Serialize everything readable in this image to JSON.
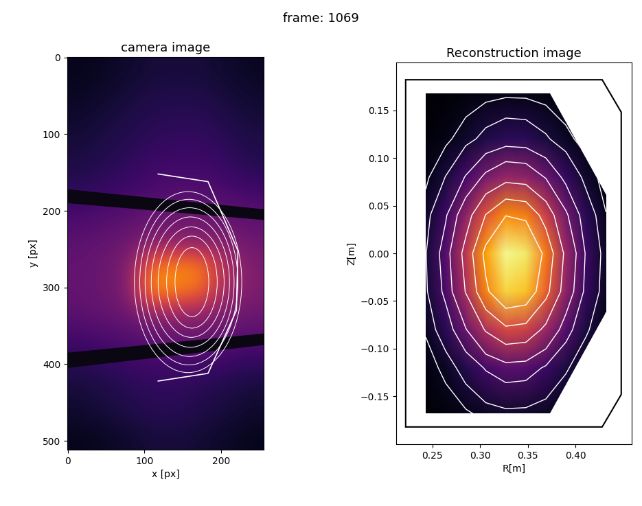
{
  "title": "frame: 1069",
  "chart_data": [
    {
      "type": "image",
      "title": "camera image",
      "xlabel": "x [px]",
      "ylabel": "y [px]",
      "xlim": [
        -0.5,
        255.5
      ],
      "ylim": [
        511.5,
        -0.5
      ],
      "xticks": [
        0,
        100,
        200
      ],
      "yticks": [
        0,
        100,
        200,
        300,
        400,
        500
      ],
      "color": "inferno",
      "color_range": [
        0,
        1
      ],
      "cells": [
        [
          0.05,
          0.06,
          0.08,
          0.1,
          0.1,
          0.1,
          0.08,
          0.06
        ],
        [
          0.06,
          0.08,
          0.1,
          0.12,
          0.12,
          0.12,
          0.1,
          0.08
        ],
        [
          0.08,
          0.1,
          0.12,
          0.14,
          0.15,
          0.15,
          0.12,
          0.1
        ],
        [
          0.1,
          0.12,
          0.14,
          0.16,
          0.17,
          0.17,
          0.15,
          0.12
        ],
        [
          0.12,
          0.14,
          0.16,
          0.2,
          0.2,
          0.2,
          0.18,
          0.14
        ],
        [
          0.16,
          0.18,
          0.2,
          0.22,
          0.24,
          0.24,
          0.22,
          0.2
        ],
        [
          0.22,
          0.24,
          0.26,
          0.3,
          0.3,
          0.3,
          0.28,
          0.26
        ],
        [
          0.26,
          0.28,
          0.3,
          0.34,
          0.36,
          0.36,
          0.34,
          0.3
        ],
        [
          0.28,
          0.3,
          0.34,
          0.7,
          0.75,
          0.72,
          0.45,
          0.34
        ],
        [
          0.28,
          0.3,
          0.34,
          0.8,
          0.72,
          0.68,
          0.42,
          0.34
        ],
        [
          0.26,
          0.28,
          0.3,
          0.36,
          0.4,
          0.38,
          0.32,
          0.3
        ],
        [
          0.2,
          0.22,
          0.24,
          0.26,
          0.28,
          0.28,
          0.26,
          0.24
        ],
        [
          0.14,
          0.16,
          0.18,
          0.2,
          0.2,
          0.2,
          0.18,
          0.16
        ],
        [
          0.1,
          0.12,
          0.14,
          0.16,
          0.16,
          0.14,
          0.12,
          0.1
        ],
        [
          0.08,
          0.1,
          0.12,
          0.14,
          0.14,
          0.12,
          0.1,
          0.08
        ],
        [
          0.05,
          0.06,
          0.08,
          0.1,
          0.1,
          0.09,
          0.07,
          0.05
        ]
      ],
      "dark_bands": [
        [
          [
            0,
            172
          ],
          [
            256,
            198
          ],
          [
            256,
            212
          ],
          [
            0,
            190
          ]
        ],
        [
          [
            0,
            385
          ],
          [
            256,
            360
          ],
          [
            256,
            375
          ],
          [
            0,
            405
          ]
        ]
      ],
      "vessel": [
        [
          118,
          152
        ],
        [
          183,
          162
        ],
        [
          222,
          252
        ],
        [
          220,
          330
        ],
        [
          183,
          412
        ],
        [
          118,
          422
        ]
      ],
      "contours": [
        [
          162,
          293,
          22,
          45
        ],
        [
          162,
          293,
          33,
          60
        ],
        [
          161,
          293,
          43,
          72
        ],
        [
          160,
          293,
          51,
          85
        ],
        [
          159,
          293,
          58,
          97
        ],
        [
          158,
          293,
          64,
          108
        ],
        [
          157,
          293,
          70,
          118
        ]
      ]
    },
    {
      "type": "heatmap",
      "title": "Reconstruction image",
      "xlabel": "R[m]",
      "ylabel": "Z[m]",
      "xlim": [
        0.212,
        0.459
      ],
      "ylim": [
        -0.2,
        0.2
      ],
      "xticks": [
        {
          "value": 0.25,
          "label": "0.25"
        },
        {
          "value": 0.3,
          "label": "0.30"
        },
        {
          "value": 0.35,
          "label": "0.35"
        },
        {
          "value": 0.4,
          "label": "0.40"
        }
      ],
      "yticks": [
        {
          "value": -0.15,
          "label": "−0.15"
        },
        {
          "value": -0.1,
          "label": "−0.10"
        },
        {
          "value": -0.05,
          "label": "−0.05"
        },
        {
          "value": 0.0,
          "label": "0.00"
        },
        {
          "value": 0.05,
          "label": "0.05"
        },
        {
          "value": 0.1,
          "label": "0.10"
        },
        {
          "value": 0.15,
          "label": "0.15"
        }
      ],
      "color": "inferno",
      "color_range": [
        0,
        1
      ],
      "R": [
        0.243,
        0.264,
        0.285,
        0.306,
        0.327,
        0.348,
        0.369,
        0.39,
        0.411,
        0.432
      ],
      "Z": [
        0.168,
        0.12,
        0.08,
        0.04,
        0.0,
        -0.04,
        -0.08,
        -0.12,
        -0.168
      ],
      "cells": [
        [
          0.004,
          0.01,
          0.02,
          0.032,
          0.039,
          0.038,
          0.029,
          0.017,
          0.008,
          0.003
        ],
        [
          0.015,
          0.038,
          0.077,
          0.122,
          0.151,
          0.145,
          0.109,
          0.064,
          0.03,
          0.011
        ],
        [
          0.039,
          0.102,
          0.206,
          0.325,
          0.401,
          0.386,
          0.291,
          0.171,
          0.079,
          0.028
        ],
        [
          0.073,
          0.189,
          0.382,
          0.605,
          0.746,
          0.718,
          0.541,
          0.318,
          0.146,
          0.052
        ],
        [
          0.096,
          0.248,
          0.5,
          0.791,
          0.975,
          0.939,
          0.708,
          0.416,
          0.191,
          0.068
        ],
        [
          0.088,
          0.226,
          0.457,
          0.723,
          0.891,
          0.858,
          0.647,
          0.38,
          0.175,
          0.062
        ],
        [
          0.056,
          0.145,
          0.293,
          0.463,
          0.571,
          0.55,
          0.415,
          0.244,
          0.112,
          0.04
        ],
        [
          0.025,
          0.065,
          0.132,
          0.209,
          0.257,
          0.247,
          0.187,
          0.11,
          0.05,
          0.018
        ],
        [
          0.008,
          0.021,
          0.041,
          0.066,
          0.081,
          0.078,
          0.059,
          0.034,
          0.016,
          0.006
        ]
      ],
      "contour_levels": [
        0.05,
        0.1,
        0.2,
        0.3,
        0.45,
        0.6,
        0.75
      ],
      "domain": [
        [
          0.243,
          0.168
        ],
        [
          0.373,
          0.168
        ],
        [
          0.432,
          0.061
        ],
        [
          0.432,
          -0.061
        ],
        [
          0.373,
          -0.168
        ],
        [
          0.243,
          -0.168
        ]
      ],
      "vessel": [
        [
          0.222,
          0.182
        ],
        [
          0.428,
          0.182
        ],
        [
          0.448,
          0.148
        ],
        [
          0.448,
          -0.148
        ],
        [
          0.428,
          -0.182
        ],
        [
          0.222,
          -0.182
        ]
      ]
    }
  ]
}
